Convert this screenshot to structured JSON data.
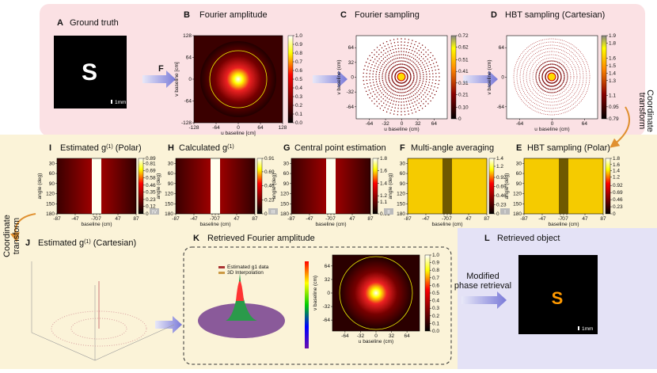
{
  "panels": {
    "A": {
      "letter": "A",
      "title": "Ground truth",
      "scale": "1mm"
    },
    "arrow": "F",
    "B": {
      "letter": "B",
      "title": "Fourier amplitude",
      "xlabel": "u baseline [cm]",
      "ylabel": "v baseline [cm]",
      "xticks": [
        -128,
        -64,
        0,
        64,
        128
      ],
      "yticks": [
        -128,
        -64,
        0,
        64,
        128
      ],
      "xlim": [
        -128,
        128
      ],
      "ylim": [
        -128,
        128
      ],
      "cbar": [
        {
          "value": 0,
          "label": "0.0"
        },
        0.1,
        0.2,
        0.3,
        0.4,
        0.5,
        0.6,
        0.7,
        0.8,
        0.9,
        {
          "value": 1,
          "label": "1.0"
        }
      ]
    },
    "C": {
      "letter": "C",
      "title": "Fourier sampling",
      "xlabel": "u baseline (cm)",
      "ylabel": "v baseline (cm)",
      "xticks": [
        -64,
        -32,
        0,
        32,
        64
      ],
      "yticks": [
        -64,
        -32,
        0,
        32,
        64
      ],
      "xlim": [
        -90,
        90
      ],
      "ylim": [
        -90,
        90
      ],
      "cbar": [
        0,
        {
          "value": 0.1,
          "label": "0.10"
        },
        0.21,
        0.31,
        0.41,
        0.51,
        0.62,
        0.72
      ]
    },
    "D": {
      "letter": "D",
      "title": "HBT sampling (Cartesian)",
      "xlabel": "u baseline (cm)",
      "ylabel": "v baseline (cm)",
      "xticks": [
        -64,
        0,
        64
      ],
      "yticks": [
        -64,
        0,
        64
      ],
      "xlim": [
        -90,
        90
      ],
      "ylim": [
        -90,
        90
      ],
      "cbar": [
        0.79,
        0.95,
        1.1,
        1.3,
        1.4,
        1.5,
        1.6,
        1.8,
        1.9
      ]
    },
    "coord_right": [
      "Coordinate",
      "transform"
    ],
    "coord_left": [
      "Coordinate",
      "transform"
    ],
    "polar_axes": {
      "xticks": [
        -87,
        -47,
        -7,
        0,
        7,
        47,
        87
      ],
      "xlim": [
        -87,
        87
      ],
      "yticks": [
        30,
        60,
        90,
        120,
        150,
        180
      ],
      "ylim": [
        15,
        180
      ],
      "y_inverted": true,
      "xlabel": "baseline (cm)",
      "ylabel": "angle (deg)"
    },
    "I": {
      "letter": "I",
      "title": [
        "Estimated g",
        "(1)",
        " (Polar)"
      ],
      "cbar": [
        0,
        0.12,
        0.23,
        0.35,
        0.46,
        0.58,
        0.69,
        0.81,
        0.89
      ],
      "step": "IV"
    },
    "H": {
      "letter": "H",
      "title": [
        "Calculated g",
        "(1)"
      ],
      "cbar": [
        0,
        0.23,
        0.46,
        0.69,
        0.91
      ],
      "step": "III"
    },
    "G": {
      "letter": "G",
      "title": [
        "Central point estimation"
      ],
      "cbar": [
        0.91,
        1.1,
        1.2,
        1.4,
        1.6,
        1.8
      ],
      "step": "II"
    },
    "F": {
      "letter": "F",
      "title": [
        "Multi-angle averaging"
      ],
      "cbar": [
        0,
        0.23,
        0.46,
        0.69,
        0.92,
        1.2,
        1.4
      ],
      "step": "I"
    },
    "E": {
      "letter": "E",
      "title": [
        "HBT sampling (Polar)"
      ],
      "cbar": [
        0,
        0.23,
        0.46,
        0.69,
        0.92,
        1.2,
        1.4,
        1.6,
        1.8
      ]
    },
    "J": {
      "letter": "J",
      "title": [
        "Estimated g",
        "(1)",
        " (Cartesian)"
      ]
    },
    "K": {
      "letter": "K",
      "title": "Retrieved Fourier amplitude",
      "legend": [
        "Estimated g1 data",
        "3D Interpolation"
      ],
      "xlabel": "u baseline (cm)",
      "ylabel": "v baseline (cm)",
      "xticks": [
        -64,
        -32,
        0,
        32,
        64
      ],
      "yticks": [
        -64,
        -32,
        0,
        32,
        64
      ],
      "xlim": [
        -90,
        90
      ],
      "ylim": [
        -90,
        90
      ],
      "cbar": [
        {
          "value": 0,
          "label": "0.0"
        },
        0.1,
        0.2,
        0.3,
        0.4,
        0.5,
        0.6,
        0.7,
        0.8,
        0.9,
        {
          "value": 1,
          "label": "1.0"
        }
      ]
    },
    "L": {
      "letter": "L",
      "title": "Retrieved object",
      "method": [
        "Modified",
        "phase retrieval"
      ],
      "scale": "1mm"
    }
  }
}
